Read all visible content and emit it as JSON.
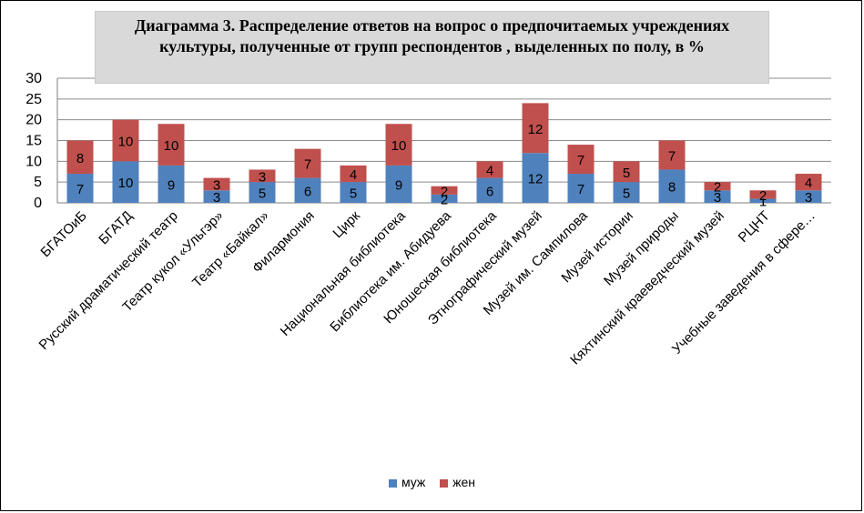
{
  "chart_data": {
    "type": "bar",
    "stacked": true,
    "title": "Диаграмма 3. Распределение  ответов  на вопрос о предпочитаемых учреждениях культуры, полученные от групп респондентов , выделенных  по полу, в %",
    "categories": [
      "БГАТОиБ",
      "БГАТД",
      "Русский драматический театр",
      "Театр кукол «Ульгэр»",
      "Театр «Байкал»",
      "Филармония",
      "Цирк",
      "Национальная библиотека",
      "Библиотека им. Абидуева",
      "Юношеская библиотека",
      "Этнографический музей",
      "Музей им. Сампилова",
      "Музей истории",
      "Музей природы",
      "Кяхтинский краеведческий музей",
      "РЦНТ",
      "Учебные заведения в сфере…"
    ],
    "series": [
      {
        "name": "муж",
        "color": "#4f81bd",
        "values": [
          7,
          10,
          9,
          3,
          5,
          6,
          5,
          9,
          2,
          6,
          12,
          7,
          5,
          8,
          3,
          1,
          3
        ]
      },
      {
        "name": "жен",
        "color": "#c0504d",
        "values": [
          8,
          10,
          10,
          3,
          3,
          7,
          4,
          10,
          2,
          4,
          12,
          7,
          5,
          7,
          2,
          2,
          4
        ]
      }
    ],
    "ylim": [
      0,
      30
    ],
    "yticks": [
      "0",
      "5",
      "10",
      "15",
      "20",
      "25",
      "30"
    ],
    "grid": true,
    "legend_position": "bottom"
  }
}
